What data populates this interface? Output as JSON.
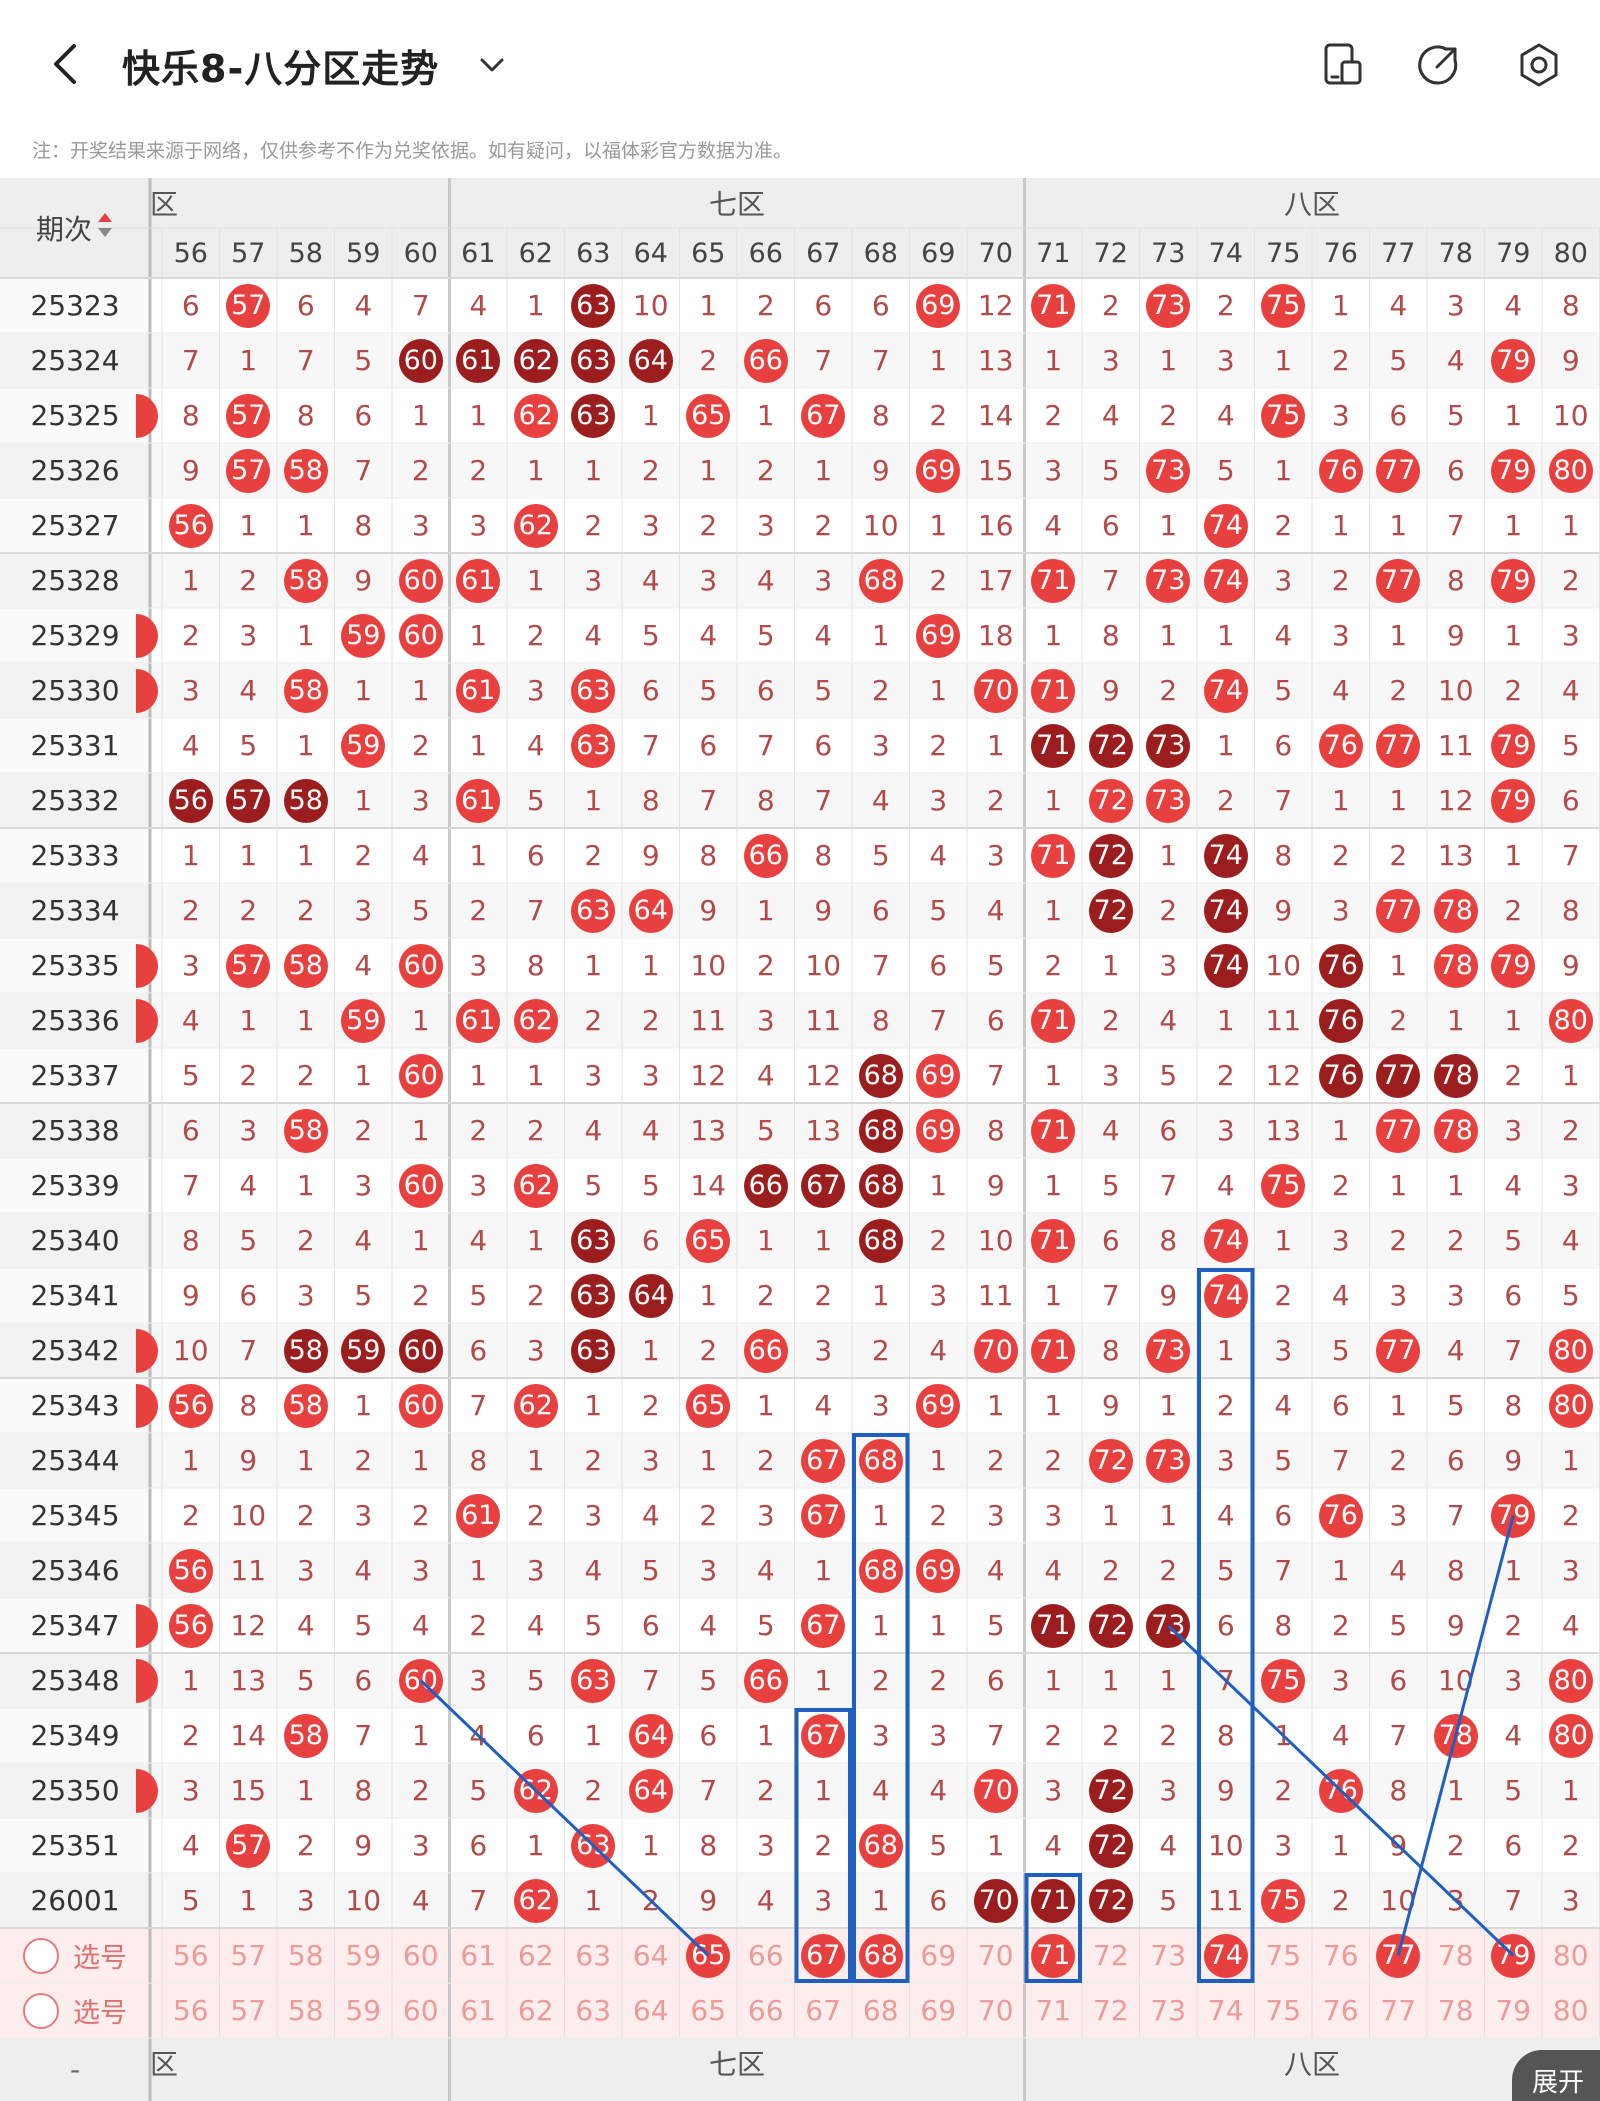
{
  "header": {
    "title": "快乐8-八分区走势",
    "icons": {
      "back": "back-arrow-icon",
      "dropdown": "chevron-down-icon",
      "device": "device-layout-icon",
      "share": "share-icon",
      "settings": "settings-icon"
    }
  },
  "note": "注：开奖结果来源于网络，仅供参考不作为兑奖依据。如有疑问，以福体彩官方数据为准。",
  "table": {
    "period_header": "期次",
    "zones": [
      "区",
      "七区",
      "八区"
    ],
    "columns": [
      56,
      57,
      58,
      59,
      60,
      61,
      62,
      63,
      64,
      65,
      66,
      67,
      68,
      69,
      70,
      71,
      72,
      73,
      74,
      75,
      76,
      77,
      78,
      79,
      80
    ],
    "select_label": "选号",
    "expand_label": "展开",
    "bottom_left_mark": "-",
    "rows": [
      {
        "period": "25323",
        "left_partial": false,
        "cells": [
          "6",
          "57",
          "6",
          "4",
          "7",
          "4",
          "1",
          "63",
          "10",
          "1",
          "2",
          "6",
          "6",
          "69",
          "12",
          "71",
          "2",
          "73",
          "2",
          "75",
          "1",
          "4",
          "3",
          "4",
          "8"
        ],
        "dark": [
          63
        ]
      },
      {
        "period": "25324",
        "left_partial": false,
        "cells": [
          "7",
          "1",
          "7",
          "5",
          "60",
          "61",
          "62",
          "63",
          "64",
          "2",
          "66",
          "7",
          "7",
          "1",
          "13",
          "1",
          "3",
          "1",
          "3",
          "1",
          "2",
          "5",
          "4",
          "79",
          "9"
        ],
        "dark": [
          60,
          61,
          62,
          63,
          64
        ]
      },
      {
        "period": "25325",
        "left_partial": true,
        "cells": [
          "8",
          "57",
          "8",
          "6",
          "1",
          "1",
          "62",
          "63",
          "1",
          "65",
          "1",
          "67",
          "8",
          "2",
          "14",
          "2",
          "4",
          "2",
          "4",
          "75",
          "3",
          "6",
          "5",
          "1",
          "10"
        ],
        "dark": [
          63
        ]
      },
      {
        "period": "25326",
        "left_partial": false,
        "cells": [
          "9",
          "57",
          "58",
          "7",
          "2",
          "2",
          "1",
          "1",
          "2",
          "1",
          "2",
          "1",
          "9",
          "69",
          "15",
          "3",
          "5",
          "73",
          "5",
          "1",
          "76",
          "77",
          "6",
          "79",
          "80"
        ],
        "dark": []
      },
      {
        "period": "25327",
        "left_partial": false,
        "cells": [
          "56",
          "1",
          "1",
          "8",
          "3",
          "3",
          "62",
          "2",
          "3",
          "2",
          "3",
          "2",
          "10",
          "1",
          "16",
          "4",
          "6",
          "1",
          "74",
          "2",
          "1",
          "1",
          "7",
          "1",
          "1"
        ],
        "dark": []
      },
      {
        "period": "25328",
        "left_partial": false,
        "cells": [
          "1",
          "2",
          "58",
          "9",
          "60",
          "61",
          "1",
          "3",
          "4",
          "3",
          "4",
          "3",
          "68",
          "2",
          "17",
          "71",
          "7",
          "73",
          "74",
          "3",
          "2",
          "77",
          "8",
          "79",
          "2"
        ],
        "dark": []
      },
      {
        "period": "25329",
        "left_partial": true,
        "cells": [
          "2",
          "3",
          "1",
          "59",
          "60",
          "1",
          "2",
          "4",
          "5",
          "4",
          "5",
          "4",
          "1",
          "69",
          "18",
          "1",
          "8",
          "1",
          "1",
          "4",
          "3",
          "1",
          "9",
          "1",
          "3"
        ],
        "dark": []
      },
      {
        "period": "25330",
        "left_partial": true,
        "cells": [
          "3",
          "4",
          "58",
          "1",
          "1",
          "61",
          "3",
          "63",
          "6",
          "5",
          "6",
          "5",
          "2",
          "1",
          "70",
          "71",
          "9",
          "2",
          "74",
          "5",
          "4",
          "2",
          "10",
          "2",
          "4"
        ],
        "dark": []
      },
      {
        "period": "25331",
        "left_partial": false,
        "cells": [
          "4",
          "5",
          "1",
          "59",
          "2",
          "1",
          "4",
          "63",
          "7",
          "6",
          "7",
          "6",
          "3",
          "2",
          "1",
          "71",
          "72",
          "73",
          "1",
          "6",
          "76",
          "77",
          "11",
          "79",
          "5"
        ],
        "dark": [
          71,
          72,
          73
        ]
      },
      {
        "period": "25332",
        "left_partial": false,
        "cells": [
          "56",
          "57",
          "58",
          "1",
          "3",
          "61",
          "5",
          "1",
          "8",
          "7",
          "8",
          "7",
          "4",
          "3",
          "2",
          "1",
          "72",
          "73",
          "2",
          "7",
          "1",
          "1",
          "12",
          "79",
          "6"
        ],
        "dark": [
          56,
          57,
          58
        ]
      },
      {
        "period": "25333",
        "left_partial": false,
        "cells": [
          "1",
          "1",
          "1",
          "2",
          "4",
          "1",
          "6",
          "2",
          "9",
          "8",
          "66",
          "8",
          "5",
          "4",
          "3",
          "71",
          "72",
          "1",
          "74",
          "8",
          "2",
          "2",
          "13",
          "1",
          "7"
        ],
        "dark": [
          72,
          74
        ]
      },
      {
        "period": "25334",
        "left_partial": false,
        "cells": [
          "2",
          "2",
          "2",
          "3",
          "5",
          "2",
          "7",
          "63",
          "64",
          "9",
          "1",
          "9",
          "6",
          "5",
          "4",
          "1",
          "72",
          "2",
          "74",
          "9",
          "3",
          "77",
          "78",
          "2",
          "8"
        ],
        "dark": [
          72,
          74
        ]
      },
      {
        "period": "25335",
        "left_partial": true,
        "cells": [
          "3",
          "57",
          "58",
          "4",
          "60",
          "3",
          "8",
          "1",
          "1",
          "10",
          "2",
          "10",
          "7",
          "6",
          "5",
          "2",
          "1",
          "3",
          "74",
          "10",
          "76",
          "1",
          "78",
          "79",
          "9"
        ],
        "dark": [
          74,
          76
        ]
      },
      {
        "period": "25336",
        "left_partial": true,
        "cells": [
          "4",
          "1",
          "1",
          "59",
          "1",
          "61",
          "62",
          "2",
          "2",
          "11",
          "3",
          "11",
          "8",
          "7",
          "6",
          "71",
          "2",
          "4",
          "1",
          "11",
          "76",
          "2",
          "1",
          "1",
          "80"
        ],
        "dark": [
          76
        ]
      },
      {
        "period": "25337",
        "left_partial": false,
        "cells": [
          "5",
          "2",
          "2",
          "1",
          "60",
          "1",
          "1",
          "3",
          "3",
          "12",
          "4",
          "12",
          "68",
          "69",
          "7",
          "1",
          "3",
          "5",
          "2",
          "12",
          "76",
          "77",
          "78",
          "2",
          "1"
        ],
        "dark": [
          68,
          76,
          77,
          78
        ]
      },
      {
        "period": "25338",
        "left_partial": false,
        "cells": [
          "6",
          "3",
          "58",
          "2",
          "1",
          "2",
          "2",
          "4",
          "4",
          "13",
          "5",
          "13",
          "68",
          "69",
          "8",
          "71",
          "4",
          "6",
          "3",
          "13",
          "1",
          "77",
          "78",
          "3",
          "2"
        ],
        "dark": [
          68
        ]
      },
      {
        "period": "25339",
        "left_partial": false,
        "cells": [
          "7",
          "4",
          "1",
          "3",
          "60",
          "3",
          "62",
          "5",
          "5",
          "14",
          "66",
          "67",
          "68",
          "1",
          "9",
          "1",
          "5",
          "7",
          "4",
          "75",
          "2",
          "1",
          "1",
          "4",
          "3"
        ],
        "dark": [
          66,
          67,
          68
        ]
      },
      {
        "period": "25340",
        "left_partial": false,
        "cells": [
          "8",
          "5",
          "2",
          "4",
          "1",
          "4",
          "1",
          "63",
          "6",
          "65",
          "1",
          "1",
          "68",
          "2",
          "10",
          "71",
          "6",
          "8",
          "74",
          "1",
          "3",
          "2",
          "2",
          "5",
          "4"
        ],
        "dark": [
          63,
          68
        ]
      },
      {
        "period": "25341",
        "left_partial": false,
        "cells": [
          "9",
          "6",
          "3",
          "5",
          "2",
          "5",
          "2",
          "63",
          "64",
          "1",
          "2",
          "2",
          "1",
          "3",
          "11",
          "1",
          "7",
          "9",
          "74",
          "2",
          "4",
          "3",
          "3",
          "6",
          "5"
        ],
        "dark": [
          63,
          64
        ]
      },
      {
        "period": "25342",
        "left_partial": true,
        "cells": [
          "10",
          "7",
          "58",
          "59",
          "60",
          "6",
          "3",
          "63",
          "1",
          "2",
          "66",
          "3",
          "2",
          "4",
          "70",
          "71",
          "8",
          "73",
          "1",
          "3",
          "5",
          "77",
          "4",
          "7",
          "80"
        ],
        "dark": [
          58,
          59,
          60,
          63
        ]
      },
      {
        "period": "25343",
        "left_partial": true,
        "cells": [
          "56",
          "8",
          "58",
          "1",
          "60",
          "7",
          "62",
          "1",
          "2",
          "65",
          "1",
          "4",
          "3",
          "69",
          "1",
          "1",
          "9",
          "1",
          "2",
          "4",
          "6",
          "1",
          "5",
          "8",
          "80"
        ],
        "dark": []
      },
      {
        "period": "25344",
        "left_partial": false,
        "cells": [
          "1",
          "9",
          "1",
          "2",
          "1",
          "8",
          "1",
          "2",
          "3",
          "1",
          "2",
          "67",
          "68",
          "1",
          "2",
          "2",
          "72",
          "73",
          "3",
          "5",
          "7",
          "2",
          "6",
          "9",
          "1"
        ],
        "dark": []
      },
      {
        "period": "25345",
        "left_partial": false,
        "cells": [
          "2",
          "10",
          "2",
          "3",
          "2",
          "61",
          "2",
          "3",
          "4",
          "2",
          "3",
          "67",
          "1",
          "2",
          "3",
          "3",
          "1",
          "1",
          "4",
          "6",
          "76",
          "3",
          "7",
          "79",
          "2"
        ],
        "dark": []
      },
      {
        "period": "25346",
        "left_partial": false,
        "cells": [
          "56",
          "11",
          "3",
          "4",
          "3",
          "1",
          "3",
          "4",
          "5",
          "3",
          "4",
          "1",
          "68",
          "69",
          "4",
          "4",
          "2",
          "2",
          "5",
          "7",
          "1",
          "4",
          "8",
          "1",
          "3"
        ],
        "dark": []
      },
      {
        "period": "25347",
        "left_partial": true,
        "cells": [
          "56",
          "12",
          "4",
          "5",
          "4",
          "2",
          "4",
          "5",
          "6",
          "4",
          "5",
          "67",
          "1",
          "1",
          "5",
          "71",
          "72",
          "73",
          "6",
          "8",
          "2",
          "5",
          "9",
          "2",
          "4"
        ],
        "dark": [
          71,
          72,
          73
        ]
      },
      {
        "period": "25348",
        "left_partial": true,
        "cells": [
          "1",
          "13",
          "5",
          "6",
          "60",
          "3",
          "5",
          "63",
          "7",
          "5",
          "66",
          "1",
          "2",
          "2",
          "6",
          "1",
          "1",
          "1",
          "7",
          "75",
          "3",
          "6",
          "10",
          "3",
          "80"
        ],
        "dark": []
      },
      {
        "period": "25349",
        "left_partial": false,
        "cells": [
          "2",
          "14",
          "58",
          "7",
          "1",
          "4",
          "6",
          "1",
          "64",
          "6",
          "1",
          "67",
          "3",
          "3",
          "7",
          "2",
          "2",
          "2",
          "8",
          "1",
          "4",
          "7",
          "78",
          "4",
          "80"
        ],
        "dark": []
      },
      {
        "period": "25350",
        "left_partial": true,
        "cells": [
          "3",
          "15",
          "1",
          "8",
          "2",
          "5",
          "62",
          "2",
          "64",
          "7",
          "2",
          "1",
          "4",
          "4",
          "70",
          "3",
          "72",
          "3",
          "9",
          "2",
          "76",
          "8",
          "1",
          "5",
          "1"
        ],
        "dark": [
          72
        ]
      },
      {
        "period": "25351",
        "left_partial": false,
        "cells": [
          "4",
          "57",
          "2",
          "9",
          "3",
          "6",
          "1",
          "63",
          "1",
          "8",
          "3",
          "2",
          "68",
          "5",
          "1",
          "4",
          "72",
          "4",
          "10",
          "3",
          "1",
          "9",
          "2",
          "6",
          "2"
        ],
        "dark": [
          72
        ]
      },
      {
        "period": "26001",
        "left_partial": false,
        "cells": [
          "5",
          "1",
          "3",
          "10",
          "4",
          "7",
          "62",
          "1",
          "2",
          "9",
          "4",
          "3",
          "1",
          "6",
          "70",
          "71",
          "72",
          "5",
          "11",
          "75",
          "2",
          "10",
          "3",
          "7",
          "3"
        ],
        "dark": [
          70,
          71,
          72
        ]
      }
    ],
    "select_rows": [
      {
        "balls": [
          65,
          67,
          68,
          71,
          74,
          77,
          79
        ]
      },
      {
        "balls": []
      }
    ]
  },
  "colors": {
    "ball_red": "#e8403f",
    "ball_dark": "#9b1d1d",
    "miss_text": "#b34a4a",
    "annotation_blue": "#1f5fbf",
    "select_bg": "#fdeeed"
  }
}
